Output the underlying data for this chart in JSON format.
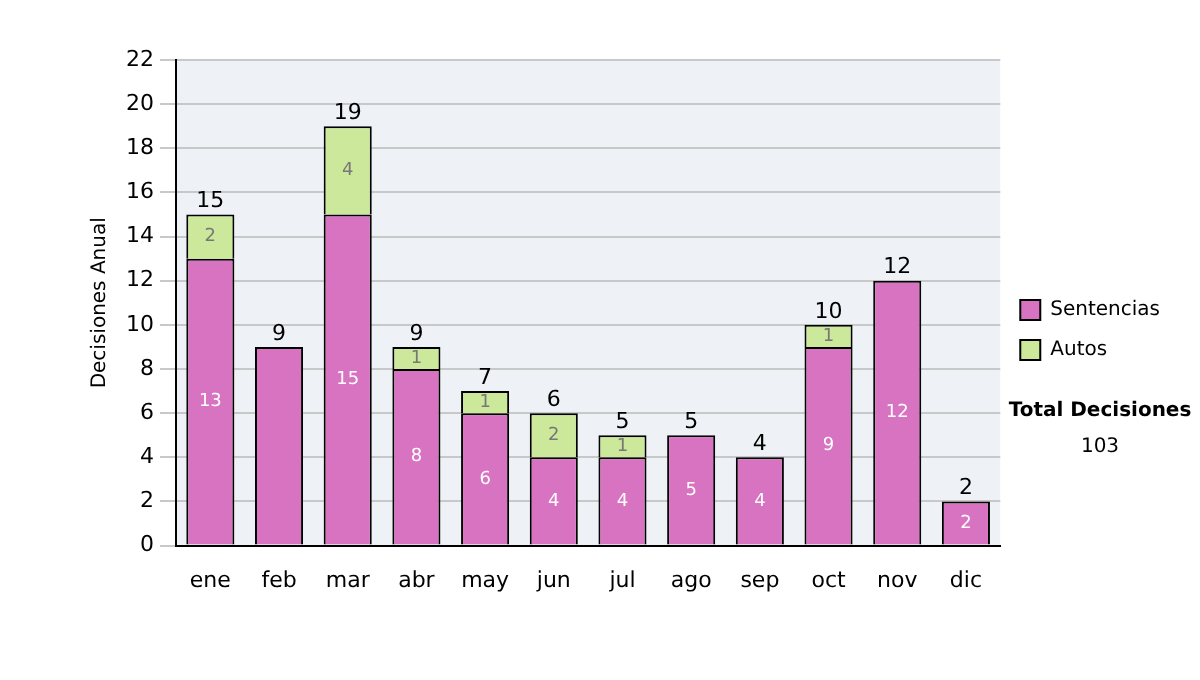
{
  "chart_data": {
    "type": "bar",
    "stacked": true,
    "categories": [
      "ene",
      "feb",
      "mar",
      "abr",
      "may",
      "jun",
      "jul",
      "ago",
      "sep",
      "oct",
      "nov",
      "dic"
    ],
    "series": [
      {
        "name": "Sentencias",
        "color": "#d873c2",
        "values": [
          13,
          9,
          15,
          8,
          6,
          4,
          4,
          5,
          4,
          9,
          12,
          2
        ],
        "value_labels": [
          "13",
          null,
          "15",
          "8",
          "6",
          "4",
          "4",
          "5",
          "4",
          "9",
          "12",
          "2"
        ]
      },
      {
        "name": "Autos",
        "color": "#cce89a",
        "values": [
          2,
          0,
          4,
          1,
          1,
          2,
          1,
          0,
          0,
          1,
          0,
          0
        ],
        "value_labels": [
          "2",
          null,
          "4",
          "1",
          "1",
          "2",
          "1",
          null,
          null,
          "1",
          null,
          null
        ]
      }
    ],
    "totals": [
      "15",
      "9",
      "19",
      "9",
      "7",
      "6",
      "5",
      "5",
      "4",
      "10",
      "12",
      "2"
    ],
    "ylabel": "Decisiones Anual",
    "ylim": [
      0,
      22
    ],
    "yticks": [
      0,
      2,
      4,
      6,
      8,
      10,
      12,
      14,
      16,
      18,
      20,
      22
    ],
    "grid": "y",
    "legend": "right",
    "annotations": [
      "Total Decisiones",
      "103"
    ]
  }
}
